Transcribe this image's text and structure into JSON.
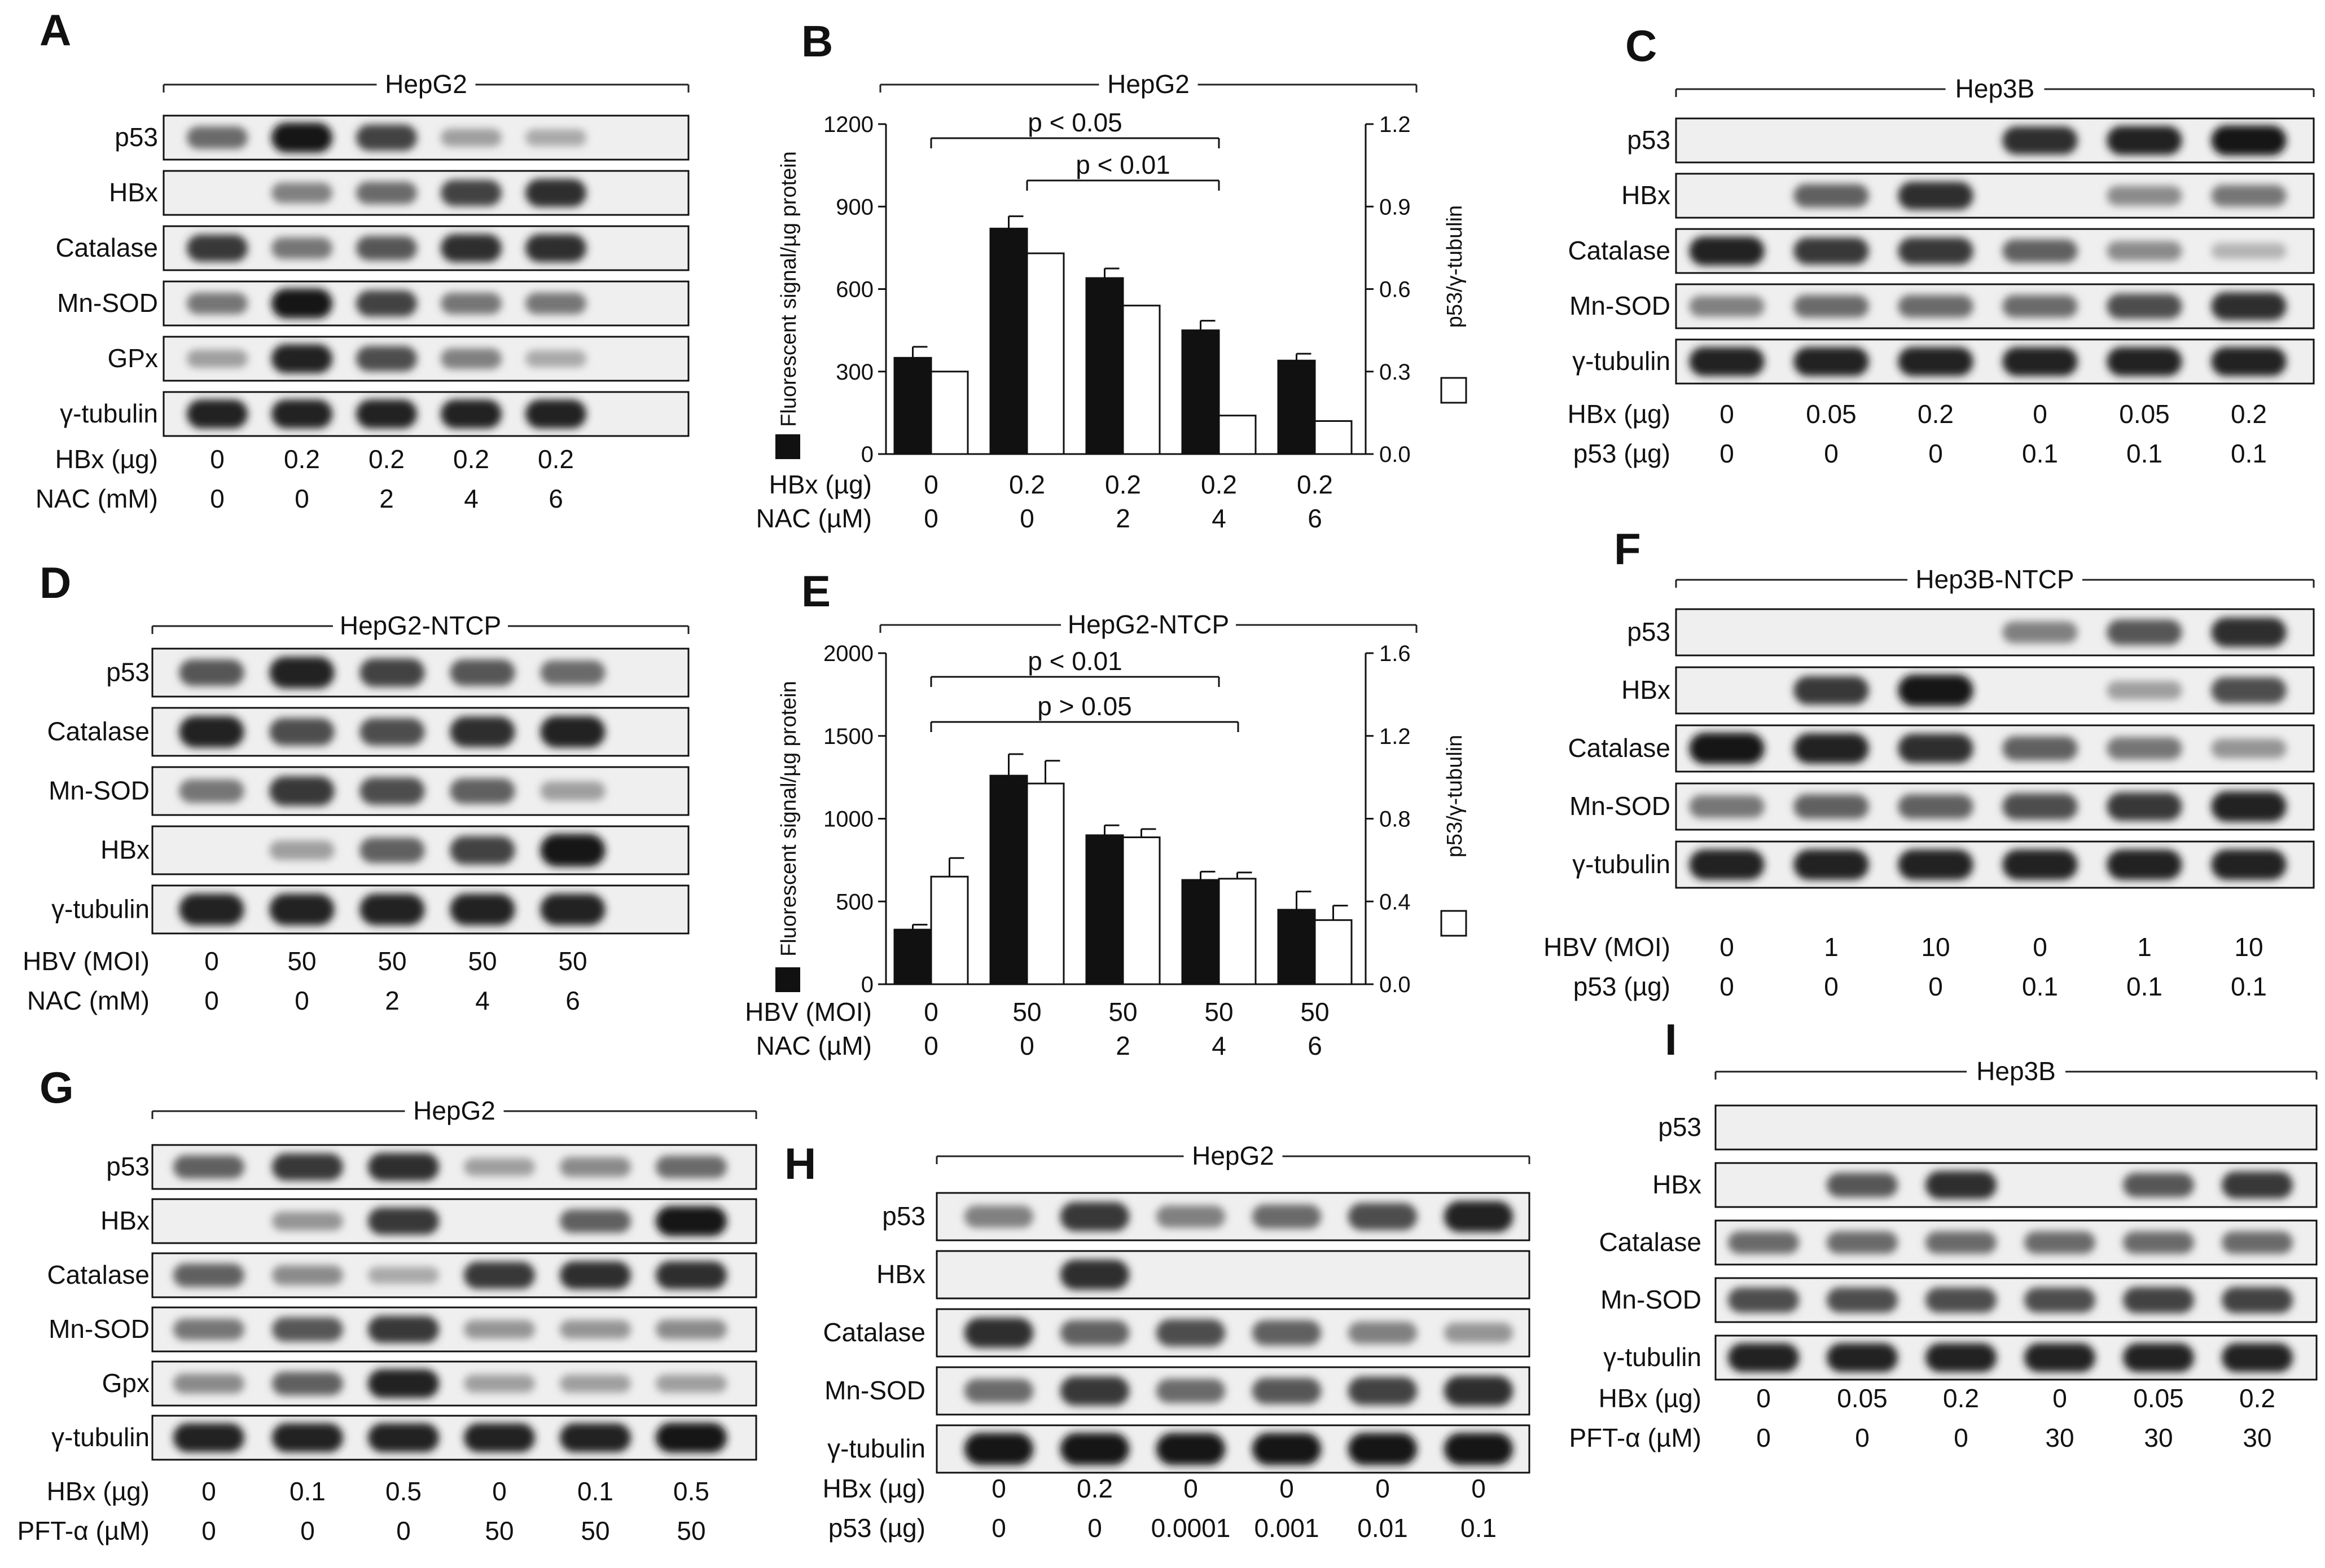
{
  "panels": [
    {
      "id": "A",
      "kind": "blot",
      "cell_line": "HepG2",
      "band_labels": [
        "p53",
        "HBx",
        "Catalase",
        "Mn-SOD",
        "GPx",
        "γ-tubulin"
      ],
      "bands": [
        [
          0.55,
          0.95,
          0.75,
          0.3,
          0.25
        ],
        [
          0,
          0.45,
          0.55,
          0.75,
          0.85
        ],
        [
          0.8,
          0.5,
          0.65,
          0.85,
          0.85
        ],
        [
          0.5,
          0.95,
          0.75,
          0.5,
          0.5
        ],
        [
          0.3,
          0.9,
          0.7,
          0.45,
          0.25
        ],
        [
          0.9,
          0.9,
          0.9,
          0.9,
          0.9
        ]
      ],
      "conditions": [
        {
          "label": "HBx (µg)",
          "values": [
            "0",
            "0.2",
            "0.2",
            "0.2",
            "0.2"
          ]
        },
        {
          "label": "NAC (mM)",
          "values": [
            "0",
            "0",
            "2",
            "4",
            "6"
          ]
        }
      ]
    },
    {
      "id": "C",
      "kind": "blot",
      "cell_line": "Hep3B",
      "band_labels": [
        "p53",
        "HBx",
        "Catalase",
        "Mn-SOD",
        "γ-tubulin"
      ],
      "bands": [
        [
          0,
          0,
          0,
          0.85,
          0.9,
          0.95
        ],
        [
          0,
          0.6,
          0.85,
          0,
          0.4,
          0.5
        ],
        [
          0.9,
          0.8,
          0.8,
          0.6,
          0.4,
          0.2
        ],
        [
          0.45,
          0.55,
          0.55,
          0.55,
          0.7,
          0.85
        ],
        [
          0.9,
          0.9,
          0.9,
          0.9,
          0.9,
          0.9
        ]
      ],
      "conditions": [
        {
          "label": "HBx (µg)",
          "values": [
            "0",
            "0.05",
            "0.2",
            "0",
            "0.05",
            "0.2"
          ]
        },
        {
          "label": "p53 (µg)",
          "values": [
            "0",
            "0",
            "0",
            "0.1",
            "0.1",
            "0.1"
          ]
        }
      ]
    },
    {
      "id": "D",
      "kind": "blot",
      "cell_line": "HepG2-NTCP",
      "band_labels": [
        "p53",
        "Catalase",
        "Mn-SOD",
        "HBx",
        "γ-tubulin"
      ],
      "bands": [
        [
          0.65,
          0.9,
          0.75,
          0.65,
          0.55
        ],
        [
          0.9,
          0.7,
          0.7,
          0.85,
          0.9
        ],
        [
          0.5,
          0.8,
          0.7,
          0.6,
          0.3
        ],
        [
          0,
          0.3,
          0.6,
          0.75,
          0.95
        ],
        [
          0.9,
          0.9,
          0.9,
          0.9,
          0.9
        ]
      ],
      "conditions": [
        {
          "label": "HBV (MOI)",
          "values": [
            "0",
            "50",
            "50",
            "50",
            "50"
          ]
        },
        {
          "label": "NAC (mM)",
          "values": [
            "0",
            "0",
            "2",
            "4",
            "6"
          ]
        }
      ]
    },
    {
      "id": "F",
      "kind": "blot",
      "cell_line": "Hep3B-NTCP",
      "band_labels": [
        "p53",
        "HBx",
        "Catalase",
        "Mn-SOD",
        "γ-tubulin"
      ],
      "bands": [
        [
          0,
          0,
          0,
          0.45,
          0.65,
          0.85
        ],
        [
          0,
          0.8,
          0.95,
          0,
          0.3,
          0.7
        ],
        [
          0.95,
          0.9,
          0.85,
          0.6,
          0.5,
          0.35
        ],
        [
          0.5,
          0.6,
          0.6,
          0.7,
          0.8,
          0.9
        ],
        [
          0.9,
          0.9,
          0.9,
          0.9,
          0.9,
          0.9
        ]
      ],
      "conditions": [
        {
          "label": "HBV (MOI)",
          "values": [
            "0",
            "1",
            "10",
            "0",
            "1",
            "10"
          ]
        },
        {
          "label": "p53 (µg)",
          "values": [
            "0",
            "0",
            "0",
            "0.1",
            "0.1",
            "0.1"
          ]
        }
      ]
    },
    {
      "id": "G",
      "kind": "blot",
      "cell_line": "HepG2",
      "band_labels": [
        "p53",
        "HBx",
        "Catalase",
        "Mn-SOD",
        "Gpx",
        "γ-tubulin"
      ],
      "bands": [
        [
          0.6,
          0.8,
          0.85,
          0.3,
          0.4,
          0.55
        ],
        [
          0,
          0.35,
          0.8,
          0,
          0.6,
          0.95
        ],
        [
          0.6,
          0.4,
          0.25,
          0.8,
          0.85,
          0.85
        ],
        [
          0.5,
          0.65,
          0.8,
          0.35,
          0.35,
          0.4
        ],
        [
          0.4,
          0.6,
          0.9,
          0.3,
          0.3,
          0.3
        ],
        [
          0.9,
          0.9,
          0.9,
          0.9,
          0.9,
          0.95
        ]
      ],
      "conditions": [
        {
          "label": "HBx (µg)",
          "values": [
            "0",
            "0.1",
            "0.5",
            "0",
            "0.1",
            "0.5"
          ]
        },
        {
          "label": "PFT-α (µM)",
          "values": [
            "0",
            "0",
            "0",
            "50",
            "50",
            "50"
          ]
        }
      ]
    },
    {
      "id": "H",
      "kind": "blot",
      "cell_line": "HepG2",
      "band_labels": [
        "p53",
        "HBx",
        "Catalase",
        "Mn-SOD",
        "γ-tubulin"
      ],
      "bands": [
        [
          0.45,
          0.8,
          0.45,
          0.55,
          0.7,
          0.9
        ],
        [
          0,
          0.85,
          0,
          0,
          0,
          0
        ],
        [
          0.85,
          0.6,
          0.7,
          0.6,
          0.45,
          0.35
        ],
        [
          0.55,
          0.8,
          0.55,
          0.65,
          0.75,
          0.85
        ],
        [
          0.95,
          0.95,
          0.95,
          0.95,
          0.95,
          0.95
        ]
      ],
      "conditions": [
        {
          "label": "HBx (µg)",
          "values": [
            "0",
            "0.2",
            "0",
            "0",
            "0",
            "0"
          ]
        },
        {
          "label": "p53 (µg)",
          "values": [
            "0",
            "0",
            "0.0001",
            "0.001",
            "0.01",
            "0.1"
          ]
        }
      ]
    },
    {
      "id": "I",
      "kind": "blot",
      "cell_line": "Hep3B",
      "band_labels": [
        "p53",
        "HBx",
        "Catalase",
        "Mn-SOD",
        "γ-tubulin"
      ],
      "bands": [
        [
          0,
          0,
          0,
          0,
          0,
          0
        ],
        [
          0,
          0.65,
          0.85,
          0,
          0.65,
          0.8
        ],
        [
          0.55,
          0.55,
          0.55,
          0.55,
          0.55,
          0.55
        ],
        [
          0.7,
          0.7,
          0.7,
          0.7,
          0.75,
          0.75
        ],
        [
          0.9,
          0.9,
          0.9,
          0.9,
          0.9,
          0.9
        ]
      ],
      "conditions": [
        {
          "label": "HBx (µg)",
          "values": [
            "0",
            "0.05",
            "0.2",
            "0",
            "0.05",
            "0.2"
          ]
        },
        {
          "label": "PFT-α (µM)",
          "values": [
            "0",
            "0",
            "0",
            "30",
            "30",
            "30"
          ]
        }
      ]
    }
  ],
  "chart_data": [
    {
      "id": "B",
      "type": "bar",
      "title": "HepG2",
      "ylabel": "Fluorescent signal/µg protein",
      "y2label": "p53/γ-tubulin",
      "ylim": [
        0,
        1200
      ],
      "yticks": [
        "0",
        "300",
        "600",
        "900",
        "1200"
      ],
      "y2lim": [
        0,
        1.2
      ],
      "y2ticks": [
        "0.0",
        "0.3",
        "0.6",
        "0.9",
        "1.2"
      ],
      "series": [
        {
          "fill": "black",
          "axis": "left",
          "values": [
            350,
            820,
            640,
            450,
            340
          ],
          "errors": [
            40,
            45,
            35,
            35,
            25
          ]
        },
        {
          "fill": "white",
          "axis": "right",
          "values": [
            0.3,
            0.73,
            0.54,
            0.14,
            0.12
          ]
        }
      ],
      "conditions": [
        {
          "label": "HBx (µg)",
          "values": [
            "0",
            "0.2",
            "0.2",
            "0.2",
            "0.2"
          ]
        },
        {
          "label": "NAC (µM)",
          "values": [
            "0",
            "0",
            "2",
            "4",
            "6"
          ]
        }
      ],
      "significance": [
        {
          "label": "p < 0.05",
          "from": 0,
          "to": 3
        },
        {
          "label": "p < 0.01",
          "from": 1,
          "to": 3
        }
      ]
    },
    {
      "id": "E",
      "type": "bar",
      "title": "HepG2-NTCP",
      "ylabel": "Fluorescent signal/µg protein",
      "y2label": "p53/γ-tubulin",
      "ylim": [
        0,
        2000
      ],
      "yticks": [
        "0",
        "500",
        "1000",
        "1500",
        "2000"
      ],
      "y2lim": [
        0,
        1.6
      ],
      "y2ticks": [
        "0.0",
        "0.4",
        "0.8",
        "1.2",
        "1.6"
      ],
      "series": [
        {
          "fill": "black",
          "axis": "left",
          "values": [
            330,
            1260,
            900,
            630,
            450
          ],
          "errors": [
            30,
            130,
            60,
            50,
            110
          ]
        },
        {
          "fill": "white",
          "axis": "right",
          "values": [
            0.52,
            0.97,
            0.71,
            0.51,
            0.31
          ],
          "errors": [
            0.09,
            0.11,
            0.04,
            0.03,
            0.07
          ]
        }
      ],
      "conditions": [
        {
          "label": "HBV (MOI)",
          "values": [
            "0",
            "50",
            "50",
            "50",
            "50"
          ]
        },
        {
          "label": "NAC (µM)",
          "values": [
            "0",
            "0",
            "2",
            "4",
            "6"
          ]
        }
      ],
      "significance": [
        {
          "label": "p < 0.01",
          "from": 0,
          "to": 3
        },
        {
          "label": "p > 0.05",
          "from": 0,
          "to": 3.2
        }
      ]
    }
  ]
}
